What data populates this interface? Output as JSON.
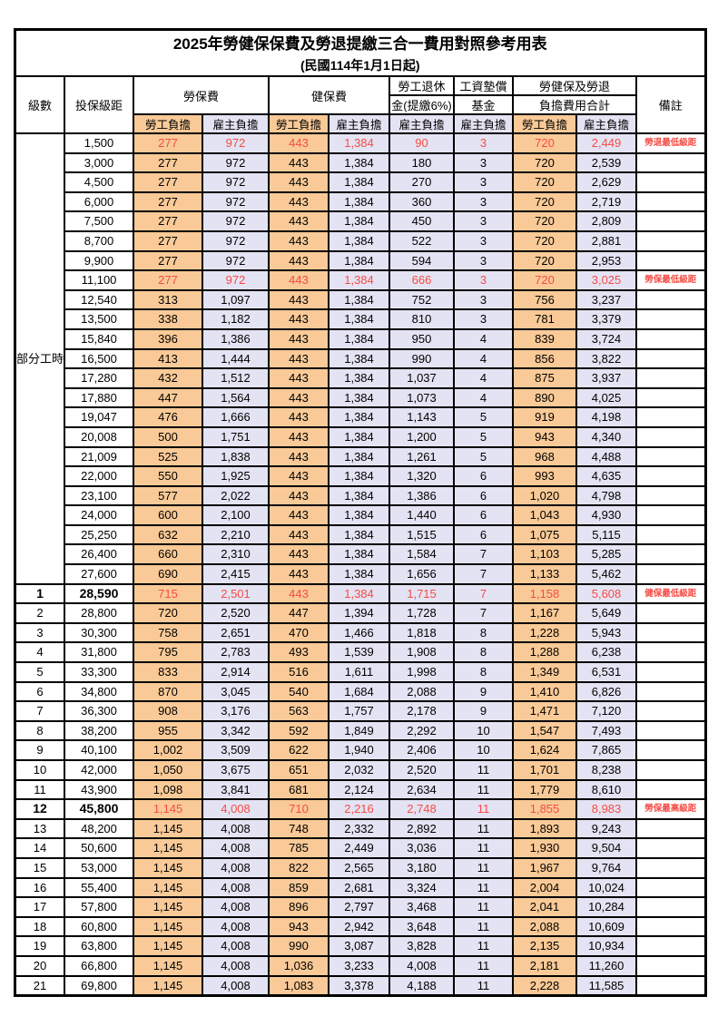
{
  "title": "2025年勞健保保費及勞退提繳三合一費用對照參考用表",
  "subtitle": "(民國114年1月1日起)",
  "header": {
    "level": "級數",
    "bracket": "投保級距",
    "labor": "勞保費",
    "health": "健保費",
    "pension_line1": "勞工退休",
    "pension_line2": "金(提繳6%)",
    "wage_fund_line1": "工資墊償",
    "wage_fund_line2": "基金",
    "total_line1": "勞健保及勞退",
    "total_line2": "負擔費用合計",
    "remark": "備註",
    "employee": "勞工負擔",
    "employer": "雇主負擔"
  },
  "part_time_label": "部分工時",
  "part_time_rowspan": 23,
  "colors": {
    "employee_bg": "#F9CA97",
    "employer_bg": "#E4E3F3",
    "highlight_red": "#F74B44",
    "border": "#000000"
  },
  "rows": [
    {
      "level": "",
      "bracket": "1,500",
      "cells": [
        "277",
        "972",
        "443",
        "1,384",
        "90",
        "3",
        "720",
        "2,449"
      ],
      "remark": "勞退最低級距",
      "red": true,
      "bold": false
    },
    {
      "level": "",
      "bracket": "3,000",
      "cells": [
        "277",
        "972",
        "443",
        "1,384",
        "180",
        "3",
        "720",
        "2,539"
      ],
      "remark": "",
      "red": false,
      "bold": false
    },
    {
      "level": "",
      "bracket": "4,500",
      "cells": [
        "277",
        "972",
        "443",
        "1,384",
        "270",
        "3",
        "720",
        "2,629"
      ],
      "remark": "",
      "red": false,
      "bold": false
    },
    {
      "level": "",
      "bracket": "6,000",
      "cells": [
        "277",
        "972",
        "443",
        "1,384",
        "360",
        "3",
        "720",
        "2,719"
      ],
      "remark": "",
      "red": false,
      "bold": false
    },
    {
      "level": "",
      "bracket": "7,500",
      "cells": [
        "277",
        "972",
        "443",
        "1,384",
        "450",
        "3",
        "720",
        "2,809"
      ],
      "remark": "",
      "red": false,
      "bold": false
    },
    {
      "level": "",
      "bracket": "8,700",
      "cells": [
        "277",
        "972",
        "443",
        "1,384",
        "522",
        "3",
        "720",
        "2,881"
      ],
      "remark": "",
      "red": false,
      "bold": false
    },
    {
      "level": "",
      "bracket": "9,900",
      "cells": [
        "277",
        "972",
        "443",
        "1,384",
        "594",
        "3",
        "720",
        "2,953"
      ],
      "remark": "",
      "red": false,
      "bold": false
    },
    {
      "level": "",
      "bracket": "11,100",
      "cells": [
        "277",
        "972",
        "443",
        "1,384",
        "666",
        "3",
        "720",
        "3,025"
      ],
      "remark": "勞保最低級距",
      "red": true,
      "bold": false
    },
    {
      "level": "",
      "bracket": "12,540",
      "cells": [
        "313",
        "1,097",
        "443",
        "1,384",
        "752",
        "3",
        "756",
        "3,237"
      ],
      "remark": "",
      "red": false,
      "bold": false
    },
    {
      "level": "",
      "bracket": "13,500",
      "cells": [
        "338",
        "1,182",
        "443",
        "1,384",
        "810",
        "3",
        "781",
        "3,379"
      ],
      "remark": "",
      "red": false,
      "bold": false
    },
    {
      "level": "",
      "bracket": "15,840",
      "cells": [
        "396",
        "1,386",
        "443",
        "1,384",
        "950",
        "4",
        "839",
        "3,724"
      ],
      "remark": "",
      "red": false,
      "bold": false
    },
    {
      "level": "",
      "bracket": "16,500",
      "cells": [
        "413",
        "1,444",
        "443",
        "1,384",
        "990",
        "4",
        "856",
        "3,822"
      ],
      "remark": "",
      "red": false,
      "bold": false
    },
    {
      "level": "",
      "bracket": "17,280",
      "cells": [
        "432",
        "1,512",
        "443",
        "1,384",
        "1,037",
        "4",
        "875",
        "3,937"
      ],
      "remark": "",
      "red": false,
      "bold": false
    },
    {
      "level": "",
      "bracket": "17,880",
      "cells": [
        "447",
        "1,564",
        "443",
        "1,384",
        "1,073",
        "4",
        "890",
        "4,025"
      ],
      "remark": "",
      "red": false,
      "bold": false
    },
    {
      "level": "",
      "bracket": "19,047",
      "cells": [
        "476",
        "1,666",
        "443",
        "1,384",
        "1,143",
        "5",
        "919",
        "4,198"
      ],
      "remark": "",
      "red": false,
      "bold": false
    },
    {
      "level": "",
      "bracket": "20,008",
      "cells": [
        "500",
        "1,751",
        "443",
        "1,384",
        "1,200",
        "5",
        "943",
        "4,340"
      ],
      "remark": "",
      "red": false,
      "bold": false
    },
    {
      "level": "",
      "bracket": "21,009",
      "cells": [
        "525",
        "1,838",
        "443",
        "1,384",
        "1,261",
        "5",
        "968",
        "4,488"
      ],
      "remark": "",
      "red": false,
      "bold": false
    },
    {
      "level": "",
      "bracket": "22,000",
      "cells": [
        "550",
        "1,925",
        "443",
        "1,384",
        "1,320",
        "6",
        "993",
        "4,635"
      ],
      "remark": "",
      "red": false,
      "bold": false
    },
    {
      "level": "",
      "bracket": "23,100",
      "cells": [
        "577",
        "2,022",
        "443",
        "1,384",
        "1,386",
        "6",
        "1,020",
        "4,798"
      ],
      "remark": "",
      "red": false,
      "bold": false
    },
    {
      "level": "",
      "bracket": "24,000",
      "cells": [
        "600",
        "2,100",
        "443",
        "1,384",
        "1,440",
        "6",
        "1,043",
        "4,930"
      ],
      "remark": "",
      "red": false,
      "bold": false
    },
    {
      "level": "",
      "bracket": "25,250",
      "cells": [
        "632",
        "2,210",
        "443",
        "1,384",
        "1,515",
        "6",
        "1,075",
        "5,115"
      ],
      "remark": "",
      "red": false,
      "bold": false
    },
    {
      "level": "",
      "bracket": "26,400",
      "cells": [
        "660",
        "2,310",
        "443",
        "1,384",
        "1,584",
        "7",
        "1,103",
        "5,285"
      ],
      "remark": "",
      "red": false,
      "bold": false
    },
    {
      "level": "",
      "bracket": "27,600",
      "cells": [
        "690",
        "2,415",
        "443",
        "1,384",
        "1,656",
        "7",
        "1,133",
        "5,462"
      ],
      "remark": "",
      "red": false,
      "bold": false
    },
    {
      "level": "1",
      "bracket": "28,590",
      "cells": [
        "715",
        "2,501",
        "443",
        "1,384",
        "1,715",
        "7",
        "1,158",
        "5,608"
      ],
      "remark": "健保最低級距",
      "red": true,
      "bold": true
    },
    {
      "level": "2",
      "bracket": "28,800",
      "cells": [
        "720",
        "2,520",
        "447",
        "1,394",
        "1,728",
        "7",
        "1,167",
        "5,649"
      ],
      "remark": "",
      "red": false,
      "bold": false
    },
    {
      "level": "3",
      "bracket": "30,300",
      "cells": [
        "758",
        "2,651",
        "470",
        "1,466",
        "1,818",
        "8",
        "1,228",
        "5,943"
      ],
      "remark": "",
      "red": false,
      "bold": false
    },
    {
      "level": "4",
      "bracket": "31,800",
      "cells": [
        "795",
        "2,783",
        "493",
        "1,539",
        "1,908",
        "8",
        "1,288",
        "6,238"
      ],
      "remark": "",
      "red": false,
      "bold": false
    },
    {
      "level": "5",
      "bracket": "33,300",
      "cells": [
        "833",
        "2,914",
        "516",
        "1,611",
        "1,998",
        "8",
        "1,349",
        "6,531"
      ],
      "remark": "",
      "red": false,
      "bold": false
    },
    {
      "level": "6",
      "bracket": "34,800",
      "cells": [
        "870",
        "3,045",
        "540",
        "1,684",
        "2,088",
        "9",
        "1,410",
        "6,826"
      ],
      "remark": "",
      "red": false,
      "bold": false
    },
    {
      "level": "7",
      "bracket": "36,300",
      "cells": [
        "908",
        "3,176",
        "563",
        "1,757",
        "2,178",
        "9",
        "1,471",
        "7,120"
      ],
      "remark": "",
      "red": false,
      "bold": false
    },
    {
      "level": "8",
      "bracket": "38,200",
      "cells": [
        "955",
        "3,342",
        "592",
        "1,849",
        "2,292",
        "10",
        "1,547",
        "7,493"
      ],
      "remark": "",
      "red": false,
      "bold": false
    },
    {
      "level": "9",
      "bracket": "40,100",
      "cells": [
        "1,002",
        "3,509",
        "622",
        "1,940",
        "2,406",
        "10",
        "1,624",
        "7,865"
      ],
      "remark": "",
      "red": false,
      "bold": false
    },
    {
      "level": "10",
      "bracket": "42,000",
      "cells": [
        "1,050",
        "3,675",
        "651",
        "2,032",
        "2,520",
        "11",
        "1,701",
        "8,238"
      ],
      "remark": "",
      "red": false,
      "bold": false
    },
    {
      "level": "11",
      "bracket": "43,900",
      "cells": [
        "1,098",
        "3,841",
        "681",
        "2,124",
        "2,634",
        "11",
        "1,779",
        "8,610"
      ],
      "remark": "",
      "red": false,
      "bold": false
    },
    {
      "level": "12",
      "bracket": "45,800",
      "cells": [
        "1,145",
        "4,008",
        "710",
        "2,216",
        "2,748",
        "11",
        "1,855",
        "8,983"
      ],
      "remark": "勞保最高級距",
      "red": true,
      "bold": true
    },
    {
      "level": "13",
      "bracket": "48,200",
      "cells": [
        "1,145",
        "4,008",
        "748",
        "2,332",
        "2,892",
        "11",
        "1,893",
        "9,243"
      ],
      "remark": "",
      "red": false,
      "bold": false
    },
    {
      "level": "14",
      "bracket": "50,600",
      "cells": [
        "1,145",
        "4,008",
        "785",
        "2,449",
        "3,036",
        "11",
        "1,930",
        "9,504"
      ],
      "remark": "",
      "red": false,
      "bold": false
    },
    {
      "level": "15",
      "bracket": "53,000",
      "cells": [
        "1,145",
        "4,008",
        "822",
        "2,565",
        "3,180",
        "11",
        "1,967",
        "9,764"
      ],
      "remark": "",
      "red": false,
      "bold": false
    },
    {
      "level": "16",
      "bracket": "55,400",
      "cells": [
        "1,145",
        "4,008",
        "859",
        "2,681",
        "3,324",
        "11",
        "2,004",
        "10,024"
      ],
      "remark": "",
      "red": false,
      "bold": false
    },
    {
      "level": "17",
      "bracket": "57,800",
      "cells": [
        "1,145",
        "4,008",
        "896",
        "2,797",
        "3,468",
        "11",
        "2,041",
        "10,284"
      ],
      "remark": "",
      "red": false,
      "bold": false
    },
    {
      "level": "18",
      "bracket": "60,800",
      "cells": [
        "1,145",
        "4,008",
        "943",
        "2,942",
        "3,648",
        "11",
        "2,088",
        "10,609"
      ],
      "remark": "",
      "red": false,
      "bold": false
    },
    {
      "level": "19",
      "bracket": "63,800",
      "cells": [
        "1,145",
        "4,008",
        "990",
        "3,087",
        "3,828",
        "11",
        "2,135",
        "10,934"
      ],
      "remark": "",
      "red": false,
      "bold": false
    },
    {
      "level": "20",
      "bracket": "66,800",
      "cells": [
        "1,145",
        "4,008",
        "1,036",
        "3,233",
        "4,008",
        "11",
        "2,181",
        "11,260"
      ],
      "remark": "",
      "red": false,
      "bold": false
    },
    {
      "level": "21",
      "bracket": "69,800",
      "cells": [
        "1,145",
        "4,008",
        "1,083",
        "3,378",
        "4,188",
        "11",
        "2,228",
        "11,585"
      ],
      "remark": "",
      "red": false,
      "bold": false
    }
  ]
}
